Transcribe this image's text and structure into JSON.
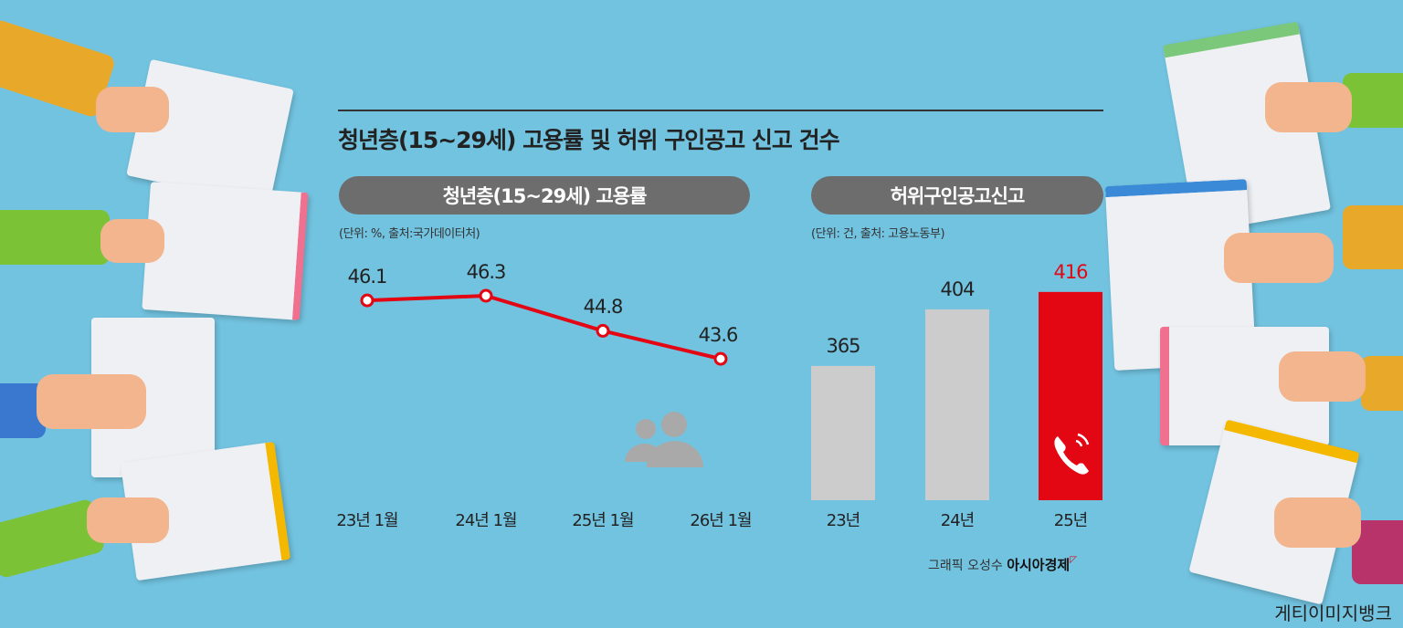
{
  "title": "청년층(15~29세) 고용률 및 허위 구인공고 신고 건수",
  "colors": {
    "background": "#72c3e0",
    "line": "#e30613",
    "highlight_bar": "#e30613",
    "bar": "#cccccc",
    "pill": "#6d6d6d"
  },
  "chart_data": [
    {
      "type": "line",
      "title": "청년층(15~29세) 고용률",
      "unit_note": "(단위: %, 출처:국가데이터처)",
      "categories": [
        "23년 1월",
        "24년 1월",
        "25년 1월",
        "26년 1월"
      ],
      "values": [
        46.1,
        46.3,
        44.8,
        43.6
      ],
      "value_labels": [
        "46.1",
        "46.3",
        "44.8",
        "43.6"
      ],
      "grid": false,
      "icon": "people-icon"
    },
    {
      "type": "bar",
      "title": "허위구인공고신고",
      "unit_note": "(단위: 건, 출처: 고용노동부)",
      "categories": [
        "23년",
        "24년",
        "25년"
      ],
      "values": [
        365,
        404,
        416
      ],
      "value_labels": [
        "365",
        "404",
        "416"
      ],
      "highlight": "25년",
      "icon": "phone-icon"
    }
  ],
  "credit": {
    "prefix": "그래픽 오성수",
    "brand": "아시아경제"
  },
  "photo_credit": "게티이미지뱅크"
}
